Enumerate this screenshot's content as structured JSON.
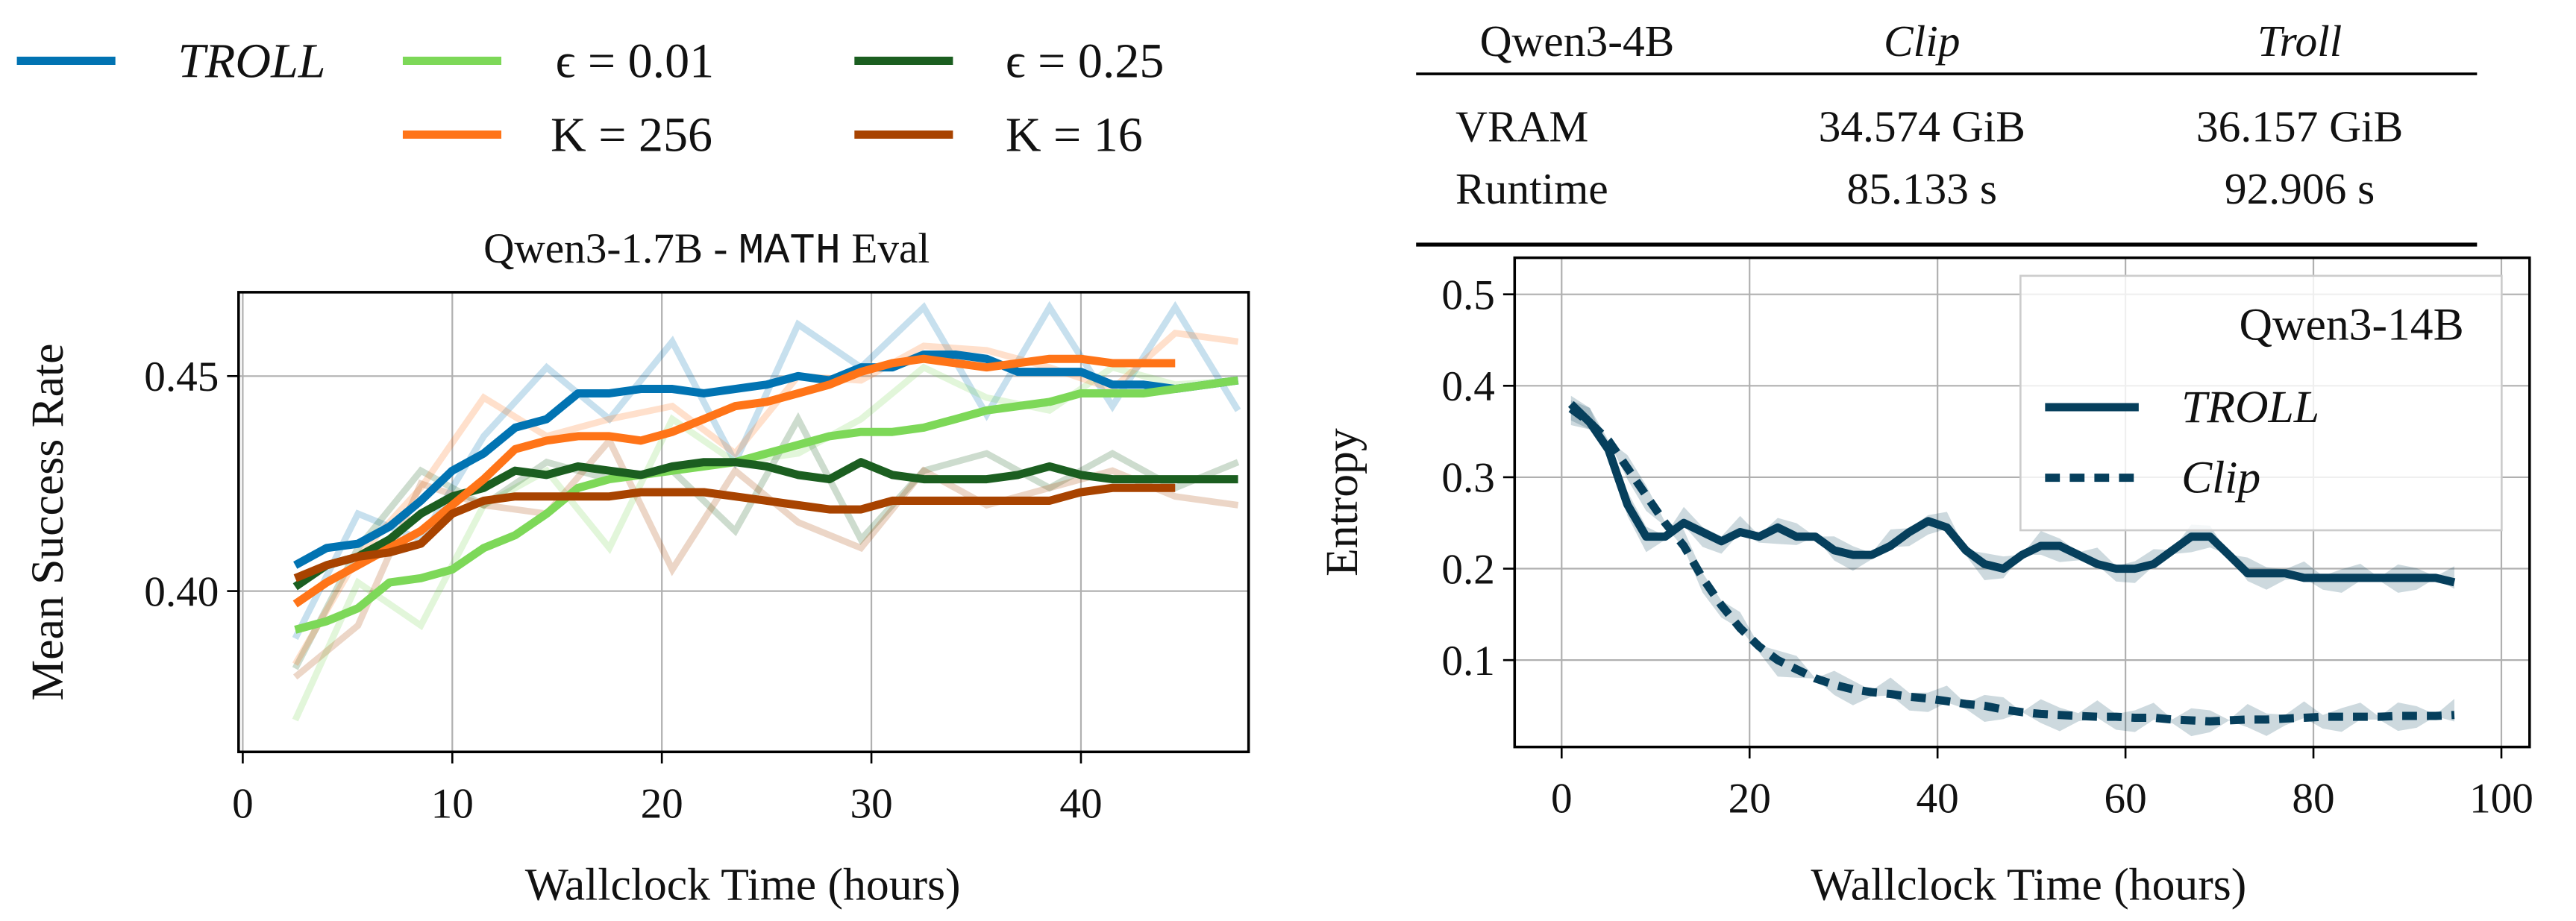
{
  "legend_top": [
    {
      "label": "TROLL",
      "italic": true,
      "color": "#0173b2"
    },
    {
      "label": "ϵ = 0.01",
      "color": "#7dd858"
    },
    {
      "label": "ϵ = 0.25",
      "color": "#1b5e20"
    },
    {
      "label": "K = 256",
      "color": "#ff7418"
    },
    {
      "label": "K = 16",
      "color": "#a84300"
    }
  ],
  "table": {
    "header": [
      "Qwen3-4B",
      "Clip",
      "Troll"
    ],
    "rows": [
      [
        "VRAM",
        "34.574 GiB",
        "36.157 GiB"
      ],
      [
        "Runtime",
        "85.133 s",
        "92.906 s"
      ]
    ]
  },
  "chart_data": [
    {
      "type": "line",
      "title_prefix": "Qwen3-1.7B - ",
      "title_mono": "MATH",
      "title_suffix": " Eval",
      "xlabel": "Wallclock Time (hours)",
      "ylabel": "Mean Success Rate",
      "xlim": [
        -0.2,
        48
      ],
      "ylim": [
        0.3626,
        0.4695
      ],
      "xticks": [
        "0",
        "10",
        "20",
        "30",
        "40"
      ],
      "yticks": [
        "0.40",
        "0.45"
      ],
      "grid": true,
      "x_smoothed_start": 2.5,
      "x_smoothed_step": 1.5,
      "x_raw_start": 2.5,
      "x_raw_step": 3,
      "series": [
        {
          "name": "TROLL",
          "color": "#0173b2",
          "values": [
            0.406,
            0.41,
            0.411,
            0.415,
            0.421,
            0.428,
            0.432,
            0.438,
            0.44,
            0.446,
            0.446,
            0.447,
            0.447,
            0.446,
            0.447,
            0.448,
            0.45,
            0.449,
            0.452,
            0.452,
            0.455,
            0.455,
            0.454,
            0.451,
            0.451,
            0.451,
            0.448,
            0.448,
            0.447,
            0.448,
            0.449
          ],
          "raw": [
            0.389,
            0.418,
            0.412,
            0.436,
            0.452,
            0.44,
            0.458,
            0.43,
            0.462,
            0.452,
            0.466,
            0.441,
            0.466,
            0.443,
            0.466,
            0.442
          ]
        },
        {
          "name": "ϵ = 0.01",
          "color": "#7dd858",
          "values": [
            0.391,
            0.393,
            0.396,
            0.402,
            0.403,
            0.405,
            0.41,
            0.413,
            0.418,
            0.424,
            0.426,
            0.427,
            0.428,
            0.429,
            0.43,
            0.432,
            0.434,
            0.436,
            0.437,
            0.437,
            0.438,
            0.44,
            0.442,
            0.443,
            0.444,
            0.446,
            0.446,
            0.446,
            0.447,
            0.448,
            0.449
          ],
          "raw": [
            0.37,
            0.402,
            0.392,
            0.42,
            0.428,
            0.41,
            0.44,
            0.43,
            0.432,
            0.44,
            0.452,
            0.445,
            0.442,
            0.452,
            0.448,
            0.449
          ]
        },
        {
          "name": "ϵ = 0.25",
          "color": "#1b5e20",
          "values": [
            0.401,
            0.406,
            0.408,
            0.412,
            0.418,
            0.422,
            0.424,
            0.428,
            0.427,
            0.429,
            0.428,
            0.427,
            0.429,
            0.43,
            0.43,
            0.429,
            0.427,
            0.426,
            0.43,
            0.427,
            0.426,
            0.426,
            0.426,
            0.427,
            0.429,
            0.427,
            0.426,
            0.426,
            0.426,
            0.426,
            0.426
          ],
          "raw": [
            0.382,
            0.41,
            0.428,
            0.42,
            0.43,
            0.426,
            0.428,
            0.414,
            0.44,
            0.412,
            0.428,
            0.432,
            0.424,
            0.432,
            0.424,
            0.43
          ]
        },
        {
          "name": "K = 256",
          "color": "#ff7418",
          "values": [
            0.397,
            0.402,
            0.406,
            0.41,
            0.414,
            0.42,
            0.426,
            0.433,
            0.435,
            0.436,
            0.436,
            0.435,
            0.437,
            0.44,
            0.443,
            0.444,
            0.446,
            0.448,
            0.451,
            0.453,
            0.454,
            0.453,
            0.452,
            0.453,
            0.454,
            0.454,
            0.453,
            0.453,
            0.453
          ],
          "raw": [
            0.383,
            0.408,
            0.424,
            0.445,
            0.436,
            0.44,
            0.443,
            0.432,
            0.45,
            0.449,
            0.457,
            0.456,
            0.452,
            0.447,
            0.46,
            0.458
          ]
        },
        {
          "name": "K = 16",
          "color": "#a84300",
          "values": [
            0.403,
            0.406,
            0.408,
            0.409,
            0.411,
            0.418,
            0.421,
            0.422,
            0.422,
            0.422,
            0.422,
            0.423,
            0.423,
            0.423,
            0.422,
            0.421,
            0.42,
            0.419,
            0.419,
            0.421,
            0.421,
            0.421,
            0.421,
            0.421,
            0.421,
            0.423,
            0.424,
            0.424,
            0.424
          ],
          "raw": [
            0.38,
            0.392,
            0.425,
            0.42,
            0.418,
            0.435,
            0.405,
            0.428,
            0.416,
            0.41,
            0.428,
            0.42,
            0.424,
            0.428,
            0.422,
            0.42
          ]
        }
      ]
    },
    {
      "type": "line",
      "xlabel": "Wallclock Time (hours)",
      "ylabel": "Entropy",
      "xlim": [
        -5,
        103
      ],
      "ylim": [
        0.005,
        0.54
      ],
      "xticks": [
        "0",
        "20",
        "40",
        "60",
        "80",
        "100"
      ],
      "yticks": [
        "0.1",
        "0.2",
        "0.3",
        "0.4",
        "0.5"
      ],
      "grid": true,
      "legend_title": "Qwen3-14B",
      "legend_position": "top-right",
      "x_start": 1,
      "x_step": 2,
      "series": [
        {
          "name": "TROLL",
          "italic": true,
          "color": "#063f5c",
          "dash": "solid",
          "values": [
            0.38,
            0.36,
            0.33,
            0.27,
            0.235,
            0.235,
            0.25,
            0.24,
            0.23,
            0.24,
            0.235,
            0.245,
            0.235,
            0.235,
            0.22,
            0.215,
            0.215,
            0.225,
            0.24,
            0.252,
            0.245,
            0.22,
            0.205,
            0.2,
            0.215,
            0.225,
            0.225,
            0.215,
            0.205,
            0.2,
            0.2,
            0.205,
            0.22,
            0.235,
            0.235,
            0.215,
            0.195,
            0.195,
            0.195,
            0.19,
            0.19,
            0.19,
            0.19,
            0.19,
            0.19,
            0.19,
            0.19,
            0.185
          ]
        },
        {
          "name": "Clip",
          "italic": true,
          "color": "#063f5c",
          "dash": "dashed",
          "values": [
            0.375,
            0.36,
            0.34,
            0.31,
            0.28,
            0.25,
            0.225,
            0.19,
            0.16,
            0.135,
            0.115,
            0.1,
            0.09,
            0.08,
            0.073,
            0.068,
            0.065,
            0.063,
            0.06,
            0.058,
            0.055,
            0.052,
            0.05,
            0.046,
            0.043,
            0.041,
            0.04,
            0.039,
            0.038,
            0.038,
            0.037,
            0.037,
            0.035,
            0.034,
            0.033,
            0.034,
            0.035,
            0.035,
            0.036,
            0.037,
            0.038,
            0.038,
            0.038,
            0.038,
            0.039,
            0.039,
            0.039,
            0.04
          ]
        }
      ]
    }
  ]
}
